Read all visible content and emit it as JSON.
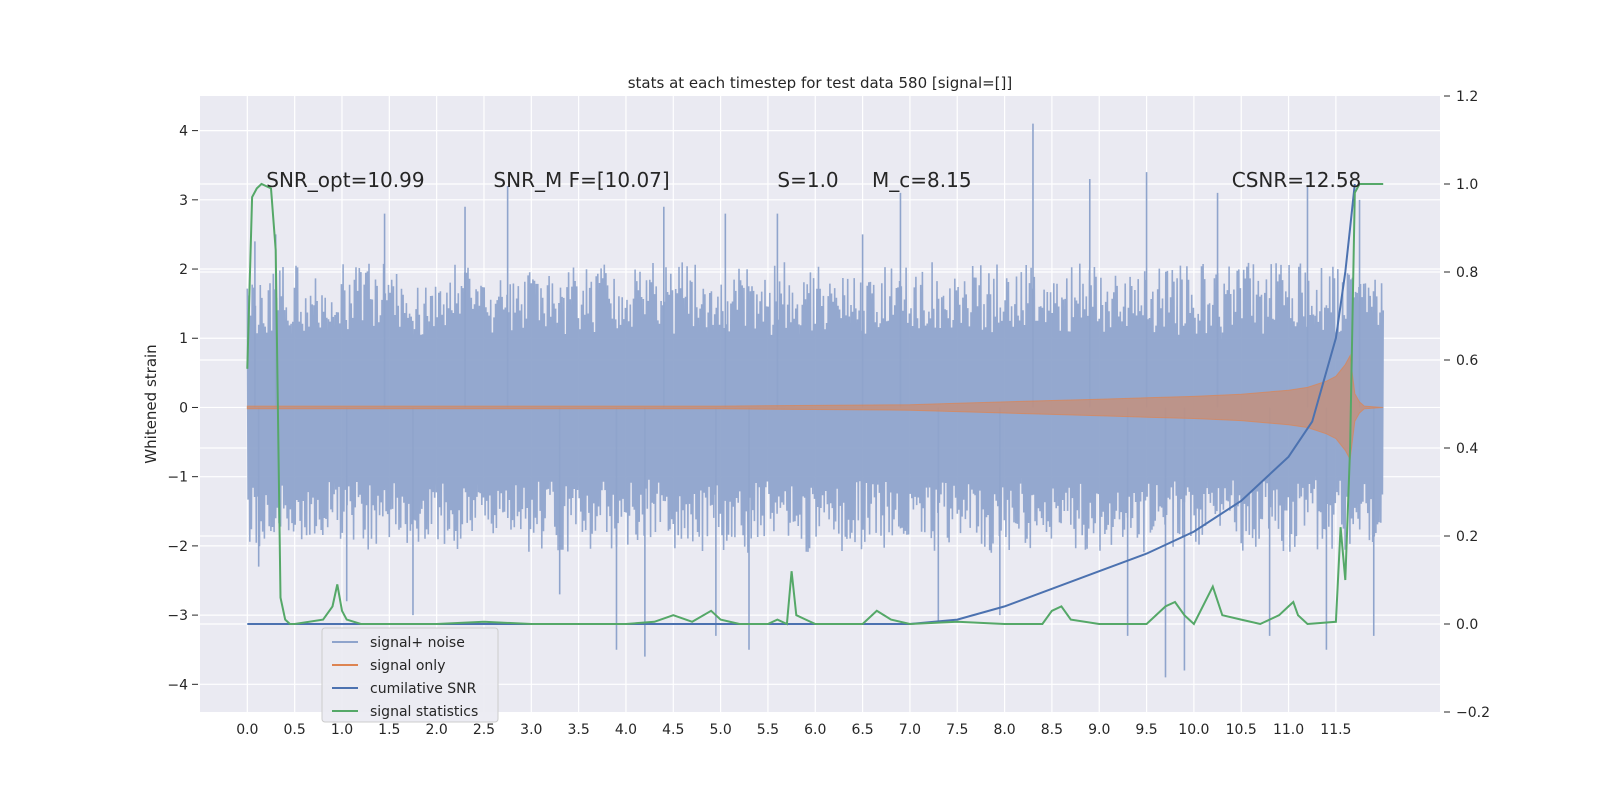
{
  "chart_data": {
    "type": "line",
    "title": "stats at each timestep for test data 580 [signal=[]]",
    "xlabel": "",
    "ylabel": "Whitened strain",
    "xlim": [
      -0.5,
      12.6
    ],
    "ylim": [
      -4.4,
      4.5
    ],
    "y2lim": [
      -0.2,
      1.2
    ],
    "grid": true,
    "legend_position": "lower-left",
    "xticks": [
      "0.0",
      "0.5",
      "1.0",
      "1.5",
      "2.0",
      "2.5",
      "3.0",
      "3.5",
      "4.0",
      "4.5",
      "5.0",
      "5.5",
      "6.0",
      "6.5",
      "7.0",
      "7.5",
      "8.0",
      "8.5",
      "9.0",
      "9.5",
      "10.0",
      "10.5",
      "11.0",
      "11.5"
    ],
    "yticks": [
      "−4",
      "−3",
      "−2",
      "−1",
      "0",
      "1",
      "2",
      "3",
      "4"
    ],
    "y2ticks": [
      "−0.2",
      "0.0",
      "0.2",
      "0.4",
      "0.6",
      "0.8",
      "1.0",
      "1.2"
    ],
    "annotations": [
      {
        "text": "SNR_opt=10.99",
        "x": 0.2,
        "y": 3.3
      },
      {
        "text": "SNR_M F=[10.07]",
        "x": 2.6,
        "y": 3.3
      },
      {
        "text": "S=1.0",
        "x": 5.6,
        "y": 3.3
      },
      {
        "text": "M_c=8.15",
        "x": 6.6,
        "y": 3.3
      },
      {
        "text": "CSNR=12.58",
        "x": 10.4,
        "y": 3.3
      }
    ],
    "series": [
      {
        "name": "signal+ noise",
        "axis": "left",
        "color": "#8fa4cc",
        "type": "noise",
        "x_range": [
          0.0,
          12.0
        ],
        "typical_range": [
          -1.9,
          2.1
        ],
        "peaks": [
          {
            "x": 0.08,
            "y": 2.4
          },
          {
            "x": 0.12,
            "y": -2.3
          },
          {
            "x": 0.3,
            "y": 2.5
          },
          {
            "x": 1.05,
            "y": -2.8
          },
          {
            "x": 1.45,
            "y": 2.8
          },
          {
            "x": 1.75,
            "y": -3.0
          },
          {
            "x": 2.3,
            "y": 2.9
          },
          {
            "x": 2.75,
            "y": 3.2
          },
          {
            "x": 3.3,
            "y": -2.7
          },
          {
            "x": 3.9,
            "y": -3.5
          },
          {
            "x": 4.2,
            "y": -3.6
          },
          {
            "x": 4.4,
            "y": 2.9
          },
          {
            "x": 4.95,
            "y": -3.3
          },
          {
            "x": 5.05,
            "y": 2.8
          },
          {
            "x": 5.3,
            "y": -3.5
          },
          {
            "x": 5.6,
            "y": 2.8
          },
          {
            "x": 6.5,
            "y": 2.5
          },
          {
            "x": 6.9,
            "y": 3.1
          },
          {
            "x": 7.3,
            "y": -3.1
          },
          {
            "x": 7.95,
            "y": -3.0
          },
          {
            "x": 8.3,
            "y": 4.1
          },
          {
            "x": 8.9,
            "y": 3.3
          },
          {
            "x": 9.3,
            "y": -3.3
          },
          {
            "x": 9.5,
            "y": 3.4
          },
          {
            "x": 9.7,
            "y": -3.9
          },
          {
            "x": 9.9,
            "y": -3.8
          },
          {
            "x": 10.25,
            "y": 3.1
          },
          {
            "x": 10.8,
            "y": -3.3
          },
          {
            "x": 11.2,
            "y": 3.2
          },
          {
            "x": 11.4,
            "y": -3.5
          },
          {
            "x": 11.75,
            "y": 3.0
          },
          {
            "x": 11.9,
            "y": -3.3
          }
        ]
      },
      {
        "name": "signal only",
        "axis": "left",
        "color": "#dd8452",
        "type": "envelope",
        "x": [
          0.0,
          1.0,
          2.0,
          3.0,
          4.0,
          5.0,
          6.0,
          7.0,
          7.5,
          8.0,
          8.5,
          9.0,
          9.5,
          10.0,
          10.5,
          11.0,
          11.2,
          11.4,
          11.5,
          11.6,
          11.65,
          11.7,
          11.75,
          11.8,
          12.0
        ],
        "amplitude": [
          0.02,
          0.02,
          0.02,
          0.02,
          0.02,
          0.02,
          0.03,
          0.04,
          0.06,
          0.08,
          0.1,
          0.12,
          0.14,
          0.16,
          0.19,
          0.25,
          0.29,
          0.38,
          0.45,
          0.62,
          0.75,
          0.2,
          0.08,
          0.02,
          0.0
        ]
      },
      {
        "name": "cumilative SNR",
        "axis": "right",
        "color": "#4c72b0",
        "x": [
          0.0,
          7.0,
          7.5,
          8.0,
          8.5,
          9.0,
          9.5,
          10.0,
          10.5,
          11.0,
          11.25,
          11.5,
          11.6,
          11.65,
          11.7
        ],
        "values": [
          0.0,
          0.0,
          0.01,
          0.04,
          0.08,
          0.12,
          0.16,
          0.21,
          0.28,
          0.38,
          0.46,
          0.65,
          0.8,
          0.9,
          1.0
        ]
      },
      {
        "name": "signal statistics",
        "axis": "right",
        "color": "#55a868",
        "x": [
          0.0,
          0.05,
          0.1,
          0.15,
          0.25,
          0.3,
          0.35,
          0.4,
          0.45,
          0.5,
          0.8,
          0.9,
          0.95,
          1.0,
          1.05,
          1.2,
          2.0,
          2.5,
          3.0,
          4.0,
          4.3,
          4.5,
          4.7,
          4.9,
          5.0,
          5.2,
          5.5,
          5.6,
          5.7,
          5.75,
          5.8,
          5.9,
          6.0,
          6.5,
          6.65,
          6.8,
          7.0,
          7.5,
          8.0,
          8.4,
          8.5,
          8.6,
          8.7,
          9.0,
          9.5,
          9.7,
          9.8,
          9.9,
          10.0,
          10.2,
          10.3,
          10.5,
          10.7,
          10.9,
          11.0,
          11.05,
          11.1,
          11.2,
          11.5,
          11.55,
          11.6,
          11.65,
          11.7,
          11.75,
          11.8,
          12.0
        ],
        "values": [
          0.58,
          0.97,
          0.99,
          1.0,
          0.99,
          0.85,
          0.06,
          0.01,
          0.0,
          0.0,
          0.01,
          0.04,
          0.09,
          0.03,
          0.01,
          0.0,
          0.0,
          0.005,
          0.0,
          0.0,
          0.005,
          0.02,
          0.005,
          0.03,
          0.01,
          0.0,
          0.0,
          0.01,
          0.0,
          0.12,
          0.02,
          0.01,
          0.0,
          0.0,
          0.03,
          0.01,
          0.0,
          0.005,
          0.0,
          0.0,
          0.03,
          0.04,
          0.01,
          0.0,
          0.0,
          0.04,
          0.05,
          0.02,
          0.0,
          0.085,
          0.02,
          0.01,
          0.0,
          0.02,
          0.04,
          0.05,
          0.02,
          0.0,
          0.005,
          0.22,
          0.1,
          0.4,
          0.98,
          1.0,
          1.0,
          1.0
        ]
      }
    ]
  }
}
